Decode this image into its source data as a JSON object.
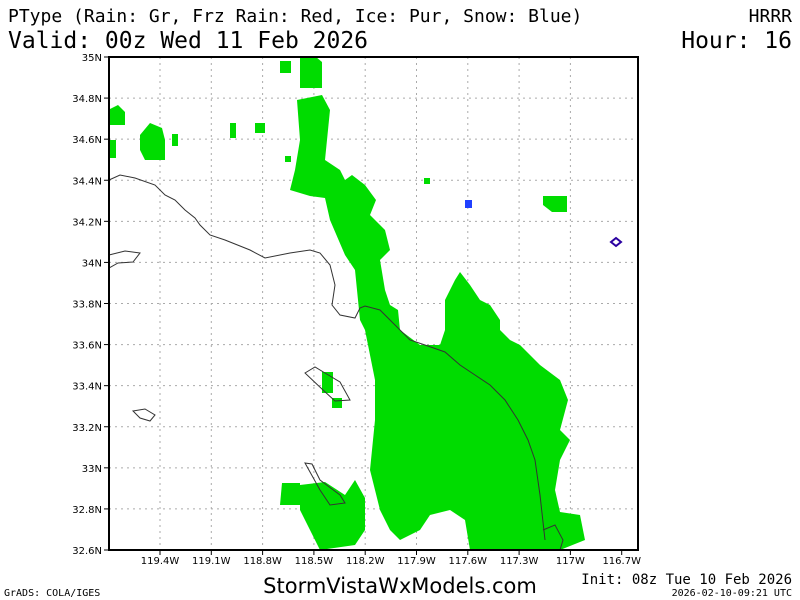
{
  "header": {
    "title": "PType (Rain: Gr, Frz Rain: Red, Ice: Pur, Snow: Blue)",
    "model": "HRRR",
    "valid": "Valid: 00z Wed 11 Feb 2026",
    "hour": "Hour: 16"
  },
  "footer": {
    "brand": "StormVistaWxModels.com",
    "init": "Init: 08z Tue 10 Feb 2026",
    "timestamp": "2026-02-10-09:21 UTC",
    "credit": "GrADS: COLA/IGES"
  },
  "map": {
    "lat_ticks": [
      "35N",
      "34.8N",
      "34.6N",
      "34.4N",
      "34.2N",
      "34N",
      "33.8N",
      "33.6N",
      "33.4N",
      "33.2N",
      "33N",
      "32.8N",
      "32.6N"
    ],
    "lon_ticks": [
      "119.4W",
      "119.1W",
      "118.8W",
      "118.5W",
      "118.2W",
      "117.9W",
      "117.6W",
      "117.3W",
      "117W",
      "116.7W"
    ],
    "colors": {
      "rain": "#00dc00",
      "freezing_rain": "#ff0000",
      "ice": "#2a00a0",
      "snow": "#2040ff"
    }
  }
}
